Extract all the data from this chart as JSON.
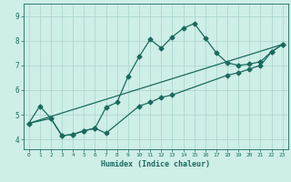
{
  "title": "",
  "xlabel": "Humidex (Indice chaleur)",
  "ylabel": "",
  "background_color": "#ceeee8",
  "line_color": "#1a6b5e",
  "grid_color": "#a8d4cc",
  "xlim": [
    -0.5,
    23.5
  ],
  "ylim": [
    3.6,
    9.5
  ],
  "xticks": [
    0,
    1,
    2,
    3,
    4,
    5,
    6,
    7,
    8,
    9,
    10,
    11,
    12,
    13,
    14,
    15,
    16,
    17,
    18,
    19,
    20,
    21,
    22,
    23
  ],
  "yticks": [
    4,
    5,
    6,
    7,
    8,
    9
  ],
  "curve1_x": [
    0,
    1,
    2,
    3,
    4,
    5,
    6,
    7,
    8,
    9,
    10,
    11,
    12,
    13,
    14,
    15,
    16,
    17,
    18,
    19,
    20,
    21,
    22,
    23
  ],
  "curve1_y": [
    4.65,
    5.35,
    4.85,
    4.15,
    4.2,
    4.35,
    4.45,
    5.3,
    5.5,
    6.55,
    7.35,
    8.05,
    7.7,
    8.15,
    8.5,
    8.7,
    8.1,
    7.5,
    7.1,
    7.0,
    7.05,
    7.15,
    7.55,
    7.85
  ],
  "curve2_x": [
    0,
    2,
    3,
    4,
    5,
    6,
    7,
    10,
    11,
    12,
    13,
    18,
    19,
    20,
    21,
    22,
    23
  ],
  "curve2_y": [
    4.65,
    4.85,
    4.15,
    4.2,
    4.35,
    4.45,
    4.25,
    5.35,
    5.5,
    5.7,
    5.8,
    6.6,
    6.7,
    6.85,
    7.0,
    7.55,
    7.85
  ],
  "curve3_x": [
    0,
    23
  ],
  "curve3_y": [
    4.65,
    7.85
  ],
  "marker_size": 2.5,
  "linewidth": 0.9
}
